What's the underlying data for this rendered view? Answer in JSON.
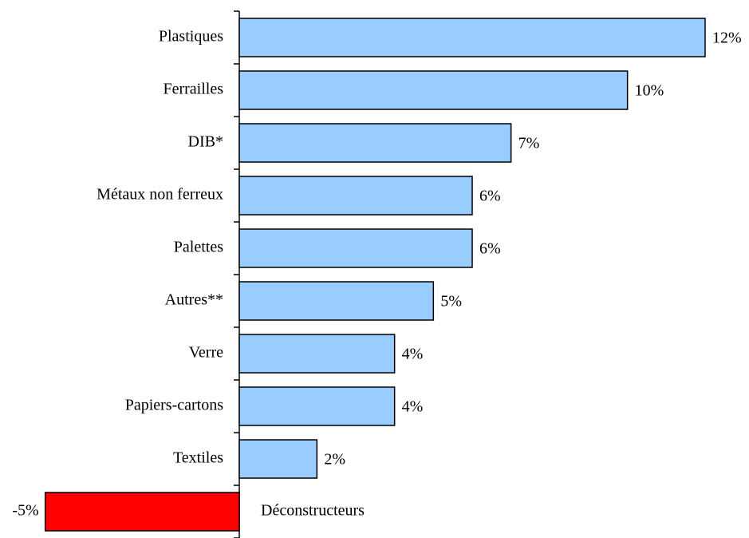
{
  "chart_data": {
    "type": "bar",
    "orientation": "horizontal",
    "categories": [
      "Plastiques",
      "Ferrailles",
      "DIB*",
      "Métaux non ferreux",
      "Palettes",
      "Autres**",
      "Verre",
      "Papiers-cartons",
      "Textiles",
      "Déconstructeurs"
    ],
    "values": [
      12,
      10,
      7,
      6,
      6,
      5,
      4,
      4,
      2,
      -5
    ],
    "value_labels": [
      "12%",
      "10%",
      "7%",
      "6%",
      "6%",
      "5%",
      "4%",
      "4%",
      "2%",
      "-5%"
    ],
    "color": "#99ccff",
    "negative_color": "#ff0000"
  }
}
